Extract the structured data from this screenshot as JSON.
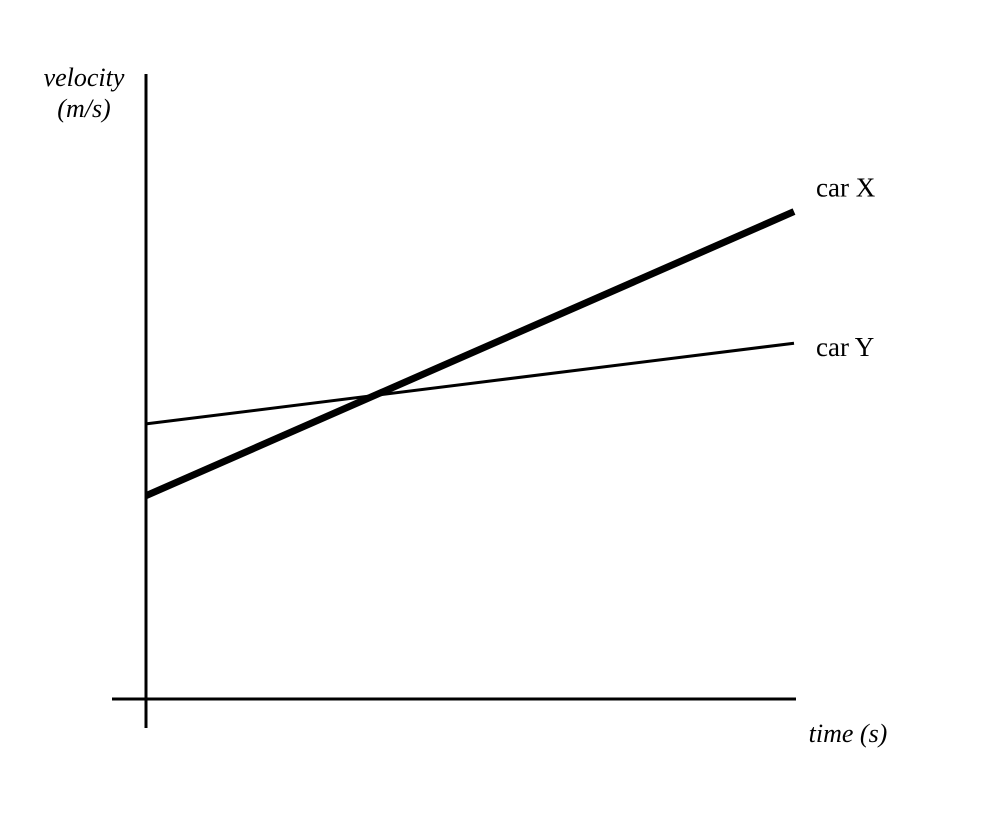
{
  "chart_data": {
    "type": "line",
    "title": "",
    "xlabel": "time (s)",
    "ylabel_line1": "velocity",
    "ylabel_line2": "(m/s)",
    "ticks": "none",
    "grid": false,
    "xlim": [
      0,
      10
    ],
    "ylim": [
      0,
      10
    ],
    "series": [
      {
        "name": "car X",
        "color": "#000000",
        "line_weight": "thick",
        "x": [
          0,
          10
        ],
        "y": [
          3.4,
          8.15
        ]
      },
      {
        "name": "car Y",
        "color": "#000000",
        "line_weight": "thin",
        "x": [
          0,
          10
        ],
        "y": [
          4.6,
          5.95
        ]
      }
    ]
  }
}
